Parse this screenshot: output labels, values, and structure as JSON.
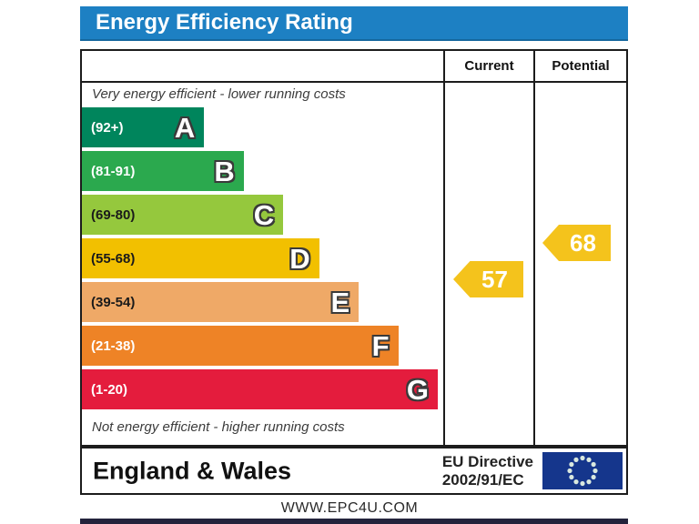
{
  "title": "Energy Efficiency Rating",
  "header": {
    "current_label": "Current",
    "potential_label": "Potential"
  },
  "notes": {
    "top": "Very energy efficient - lower running costs",
    "bottom": "Not energy efficient - higher running costs"
  },
  "chart_data": {
    "type": "bar",
    "title": "Energy Efficiency Rating",
    "orientation": "horizontal",
    "bands": [
      {
        "letter": "A",
        "range": "(92+)",
        "color": "#00855c",
        "label_color": "#ffffff",
        "width_pct": 34
      },
      {
        "letter": "B",
        "range": "(81-91)",
        "color": "#2ba94e",
        "label_color": "#ffffff",
        "width_pct": 45
      },
      {
        "letter": "C",
        "range": "(69-80)",
        "color": "#95c83d",
        "label_color": "#1a1a1a",
        "width_pct": 56
      },
      {
        "letter": "D",
        "range": "(55-68)",
        "color": "#f2c000",
        "label_color": "#1a1a1a",
        "width_pct": 66
      },
      {
        "letter": "E",
        "range": "(39-54)",
        "color": "#efa967",
        "label_color": "#1a1a1a",
        "width_pct": 77
      },
      {
        "letter": "F",
        "range": "(21-38)",
        "color": "#ee8326",
        "label_color": "#ffffff",
        "width_pct": 88
      },
      {
        "letter": "G",
        "range": "(1-20)",
        "color": "#e41c3d",
        "label_color": "#ffffff",
        "width_pct": 99
      }
    ],
    "current": 57,
    "potential": 68,
    "arrow_color": "#f4c31c",
    "annotations": [
      "Very energy efficient - lower running costs",
      "Not energy efficient - higher running costs"
    ],
    "legend_position": "none"
  },
  "footer": {
    "region": "England & Wales",
    "directive_line1": "EU Directive",
    "directive_line2": "2002/91/EC"
  },
  "website": "WWW.EPC4U.COM",
  "colors": {
    "title_bg": "#1d80c3",
    "border": "#1c1c1c",
    "flag_blue": "#15368c",
    "flag_star": "#d9e8df"
  }
}
